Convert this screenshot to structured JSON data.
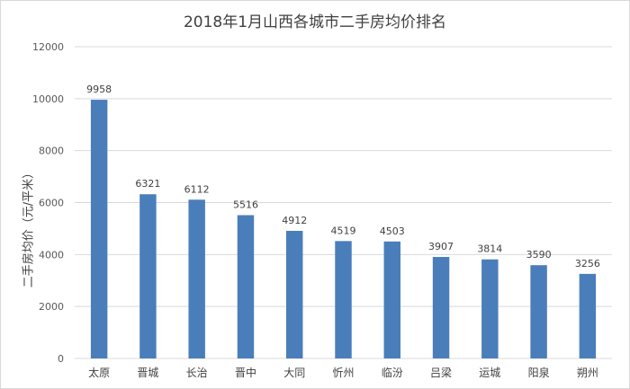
{
  "chart_data": {
    "type": "bar",
    "title": "2018年1月山西各城市二手房均价排名",
    "xlabel": "",
    "ylabel": "二手房均价（元/平米）",
    "categories": [
      "太原",
      "晋城",
      "长治",
      "晋中",
      "大同",
      "忻州",
      "临汾",
      "吕梁",
      "运城",
      "阳泉",
      "朔州"
    ],
    "values": [
      9958,
      6321,
      6112,
      5516,
      4912,
      4519,
      4503,
      3907,
      3814,
      3590,
      3256
    ],
    "ylim": [
      0,
      12000
    ],
    "yticks": [
      0,
      2000,
      4000,
      6000,
      8000,
      10000,
      12000
    ],
    "grid": true,
    "legend": "none",
    "bar_color": "#4a7ebb",
    "grid_color": "#d9d9d9"
  }
}
